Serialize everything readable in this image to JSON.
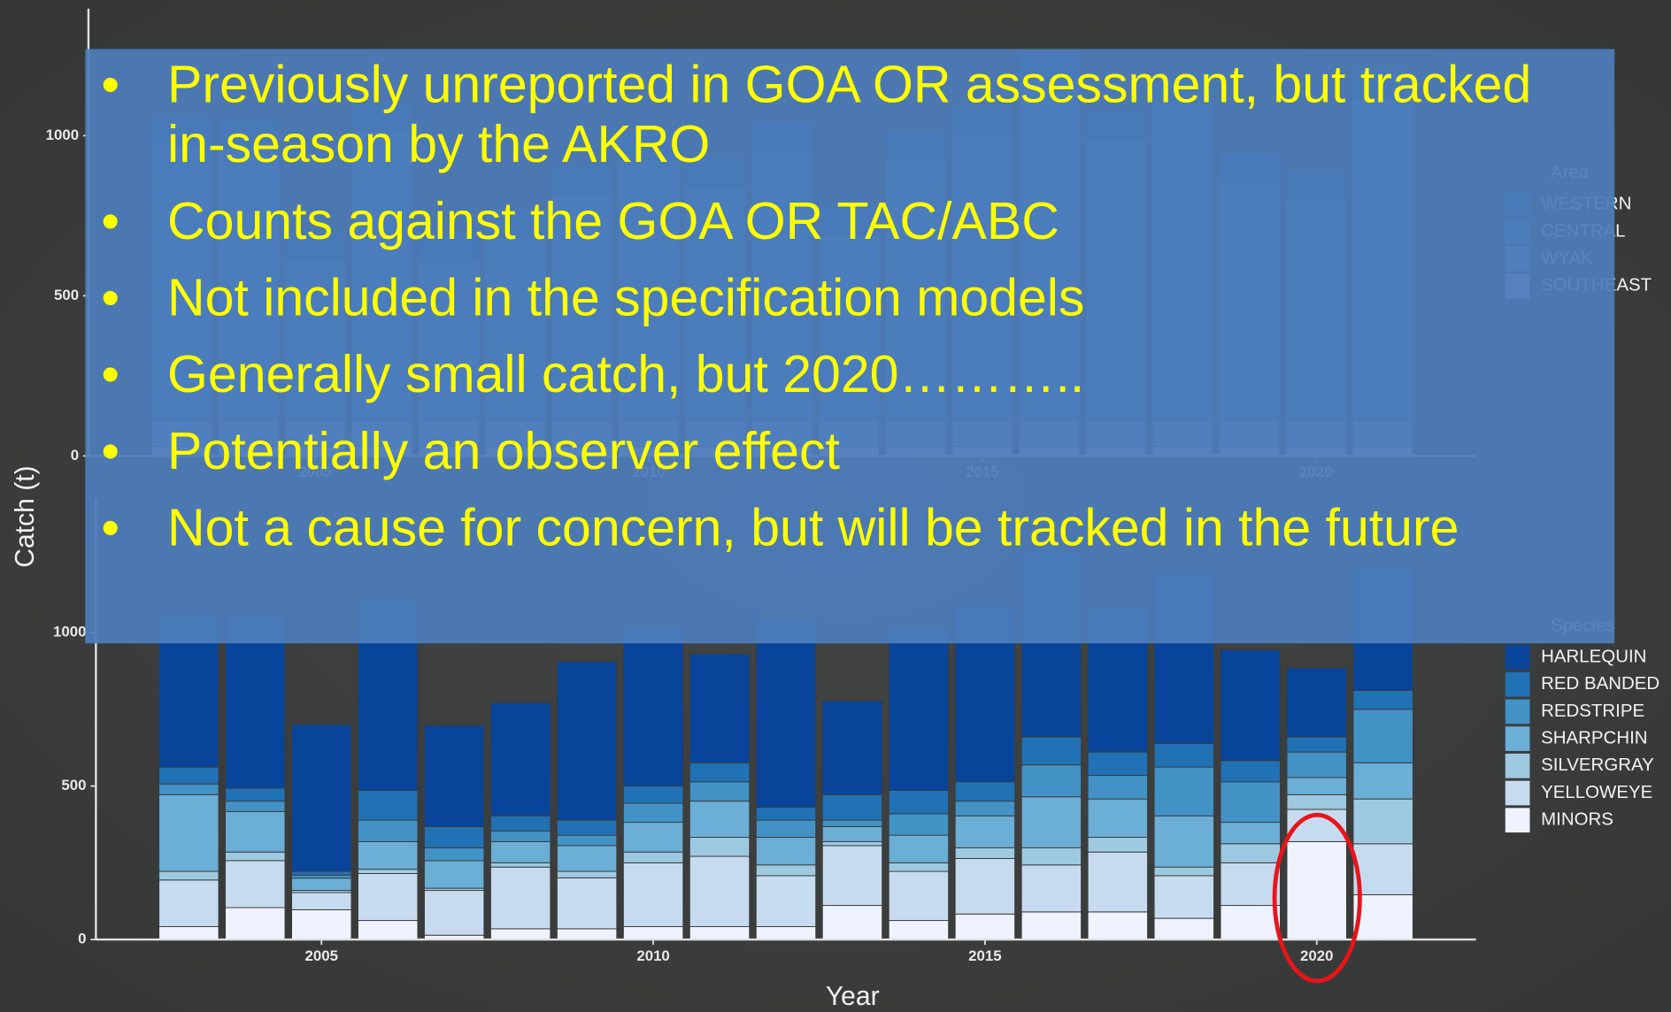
{
  "bullets": [
    "Previously unreported in GOA OR assessment, but tracked in-season by the AKRO",
    "Counts against the GOA OR TAC/ABC",
    "Not included in the specification models",
    "Generally small catch, but 2020………..",
    "Potentially an observer effect",
    "Not a cause for concern, but will be tracked in the future"
  ],
  "chart_data": [
    {
      "type": "bar",
      "stacked": true,
      "legend_title": "Area",
      "x": [
        2003,
        2004,
        2005,
        2006,
        2007,
        2008,
        2009,
        2010,
        2011,
        2012,
        2013,
        2014,
        2015,
        2016,
        2017,
        2018,
        2019,
        2020,
        2021
      ],
      "xlim": [
        2001.6,
        2022.4
      ],
      "xticks": [
        2005,
        2010,
        2015,
        2020
      ],
      "ylim": [
        0,
        1390
      ],
      "yticks": [
        0,
        500,
        1000
      ],
      "series": [
        {
          "name": "WESTERN",
          "color": "#08519c",
          "values": [
            90,
            90,
            90,
            90,
            90,
            90,
            90,
            90,
            90,
            90,
            90,
            90,
            90,
            90,
            90,
            90,
            90,
            90,
            90
          ]
        },
        {
          "name": "CENTRAL",
          "color": "#3182bd",
          "values": [
            860,
            850,
            501,
            904,
            498,
            571,
            706,
            814,
            731,
            842,
            578,
            814,
            890,
            1064,
            880,
            994,
            744,
            685,
            1008
          ]
        },
        {
          "name": "WYAK",
          "color": "#6baed6",
          "values": [
            80,
            80,
            80,
            80,
            80,
            80,
            80,
            80,
            80,
            80,
            80,
            80,
            80,
            80,
            80,
            80,
            80,
            80,
            80
          ]
        },
        {
          "name": "SOUTHEAST",
          "color": "#bdd7e7",
          "values": [
            30,
            30,
            30,
            30,
            30,
            30,
            30,
            30,
            30,
            30,
            30,
            30,
            30,
            30,
            30,
            30,
            30,
            30,
            30
          ]
        }
      ]
    },
    {
      "type": "bar",
      "stacked": true,
      "legend_title": "Species",
      "x_label": "Year",
      "y_label": "Catch (t)",
      "x": [
        2003,
        2004,
        2005,
        2006,
        2007,
        2008,
        2009,
        2010,
        2011,
        2012,
        2013,
        2014,
        2015,
        2016,
        2017,
        2018,
        2019,
        2020,
        2021
      ],
      "xlim": [
        2001.6,
        2022.4
      ],
      "xticks": [
        2005,
        2010,
        2015,
        2020
      ],
      "ylim": [
        0,
        1430
      ],
      "yticks": [
        0,
        500,
        1000
      ],
      "series": [
        {
          "name": "HARLEQUIN",
          "color": "#08459a",
          "values": [
            498,
            557,
            479,
            618,
            330,
            368,
            517,
            514,
            355,
            611,
            306,
            528,
            576,
            604,
            469,
            555,
            361,
            225,
            396
          ]
        },
        {
          "name": "RED BANDED",
          "color": "#2171b5",
          "values": [
            55,
            42,
            12,
            97,
            69,
            49,
            49,
            56,
            62,
            42,
            83,
            76,
            63,
            91,
            76,
            77,
            69,
            49,
            62
          ]
        },
        {
          "name": "REDSTRIPE",
          "color": "#4292c6",
          "values": [
            35,
            34,
            10,
            70,
            42,
            35,
            34,
            62,
            63,
            56,
            21,
            70,
            48,
            104,
            77,
            159,
            132,
            83,
            174
          ]
        },
        {
          "name": "SHARPCHIN",
          "color": "#6baed6",
          "values": [
            250,
            132,
            40,
            90,
            90,
            69,
            84,
            97,
            118,
            90,
            49,
            90,
            104,
            166,
            125,
            167,
            70,
            56,
            118
          ]
        },
        {
          "name": "SILVERGRAY",
          "color": "#9ecae1",
          "values": [
            28,
            28,
            7,
            14,
            7,
            14,
            21,
            35,
            62,
            35,
            13,
            28,
            35,
            56,
            48,
            28,
            62,
            48,
            146
          ]
        },
        {
          "name": "YELLOWEYE",
          "color": "#c6dbef",
          "values": [
            152,
            153,
            56,
            153,
            146,
            201,
            166,
            208,
            229,
            166,
            195,
            160,
            181,
            153,
            195,
            139,
            139,
            105,
            166
          ]
        },
        {
          "name": "MINORS",
          "color": "#eff3ff",
          "values": [
            42,
            104,
            97,
            62,
            14,
            35,
            35,
            42,
            42,
            42,
            111,
            62,
            83,
            90,
            90,
            69,
            111,
            319,
            146
          ]
        }
      ]
    }
  ]
}
